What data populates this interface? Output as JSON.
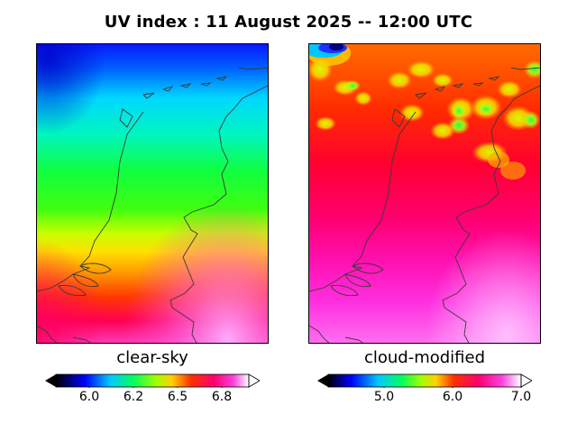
{
  "title": "UV index :  11 August 2025  --  12:00 UTC",
  "panels": [
    {
      "label": "clear-sky",
      "colorbar_ticks": [
        "6.0",
        "6.2",
        "6.5",
        "6.8"
      ],
      "colorbar_range": [
        5.75,
        7.0
      ]
    },
    {
      "label": "cloud-modified",
      "colorbar_ticks": [
        "5.0",
        "6.0",
        "7.0"
      ],
      "colorbar_range": [
        4.2,
        7.0
      ]
    }
  ],
  "colors": {
    "coastline": "#3a3a3a",
    "border": "#000000"
  }
}
